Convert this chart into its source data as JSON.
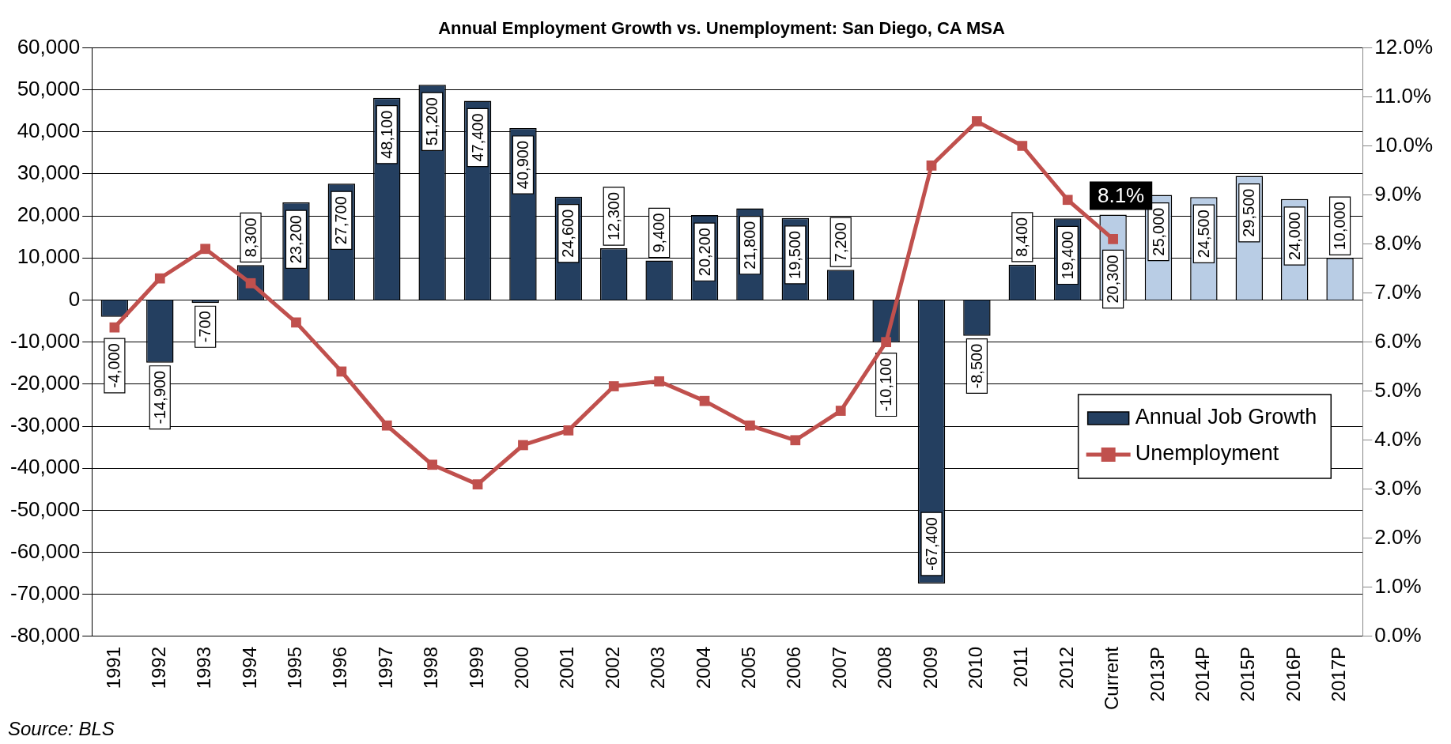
{
  "chart_data": {
    "type": "bar",
    "title": "Annual Employment Growth vs. Unemployment: San Diego, CA MSA",
    "categories": [
      "1991",
      "1992",
      "1993",
      "1994",
      "1995",
      "1996",
      "1997",
      "1998",
      "1999",
      "2000",
      "2001",
      "2002",
      "2003",
      "2004",
      "2005",
      "2006",
      "2007",
      "2008",
      "2009",
      "2010",
      "2011",
      "2012",
      "Current",
      "2013P",
      "2014P",
      "2015P",
      "2016P",
      "2017P"
    ],
    "series": [
      {
        "name": "Annual Job Growth",
        "color": "#243f60",
        "colors": [
          "#243f60",
          "#243f60",
          "#243f60",
          "#243f60",
          "#243f60",
          "#243f60",
          "#243f60",
          "#243f60",
          "#243f60",
          "#243f60",
          "#243f60",
          "#243f60",
          "#243f60",
          "#243f60",
          "#243f60",
          "#243f60",
          "#243f60",
          "#243f60",
          "#243f60",
          "#243f60",
          "#243f60",
          "#243f60",
          "#b9cde5",
          "#b9cde5",
          "#b9cde5",
          "#b9cde5",
          "#b9cde5",
          "#b9cde5"
        ],
        "values": [
          -4000,
          -14900,
          -700,
          8300,
          23200,
          27700,
          48100,
          51200,
          47400,
          40900,
          24600,
          12300,
          9400,
          20200,
          21800,
          19500,
          7200,
          -10100,
          -67400,
          -8500,
          8400,
          19400,
          20300,
          25000,
          24500,
          29500,
          24000,
          10000
        ],
        "value_labels": [
          "-4,000",
          "-14,900",
          "-700",
          "8,300",
          "23,200",
          "27,700",
          "48,100",
          "51,200",
          "47,400",
          "40,900",
          "24,600",
          "12,300",
          "9,400",
          "20,200",
          "21,800",
          "19,500",
          "7,200",
          "-10,100",
          "-67,400",
          "-8,500",
          "8,400",
          "19,400",
          "20,300",
          "25,000",
          "24,500",
          "29,500",
          "24,000",
          "10,000"
        ]
      },
      {
        "name": "Unemployment",
        "type": "line",
        "axis": "y2",
        "color": "#c0504d",
        "values": [
          6.3,
          7.3,
          7.9,
          7.2,
          6.4,
          5.4,
          4.3,
          3.5,
          3.1,
          3.9,
          4.2,
          5.1,
          5.2,
          4.8,
          4.3,
          4.0,
          4.6,
          6.0,
          9.6,
          10.5,
          10.0,
          8.9,
          8.1,
          null,
          null,
          null,
          null,
          null
        ]
      }
    ],
    "ylim": [
      -80000,
      60000
    ],
    "yticks": [
      {
        "value": -80000,
        "label": "-80,000"
      },
      {
        "value": -70000,
        "label": "-70,000"
      },
      {
        "value": -60000,
        "label": "-60,000"
      },
      {
        "value": -50000,
        "label": "-50,000"
      },
      {
        "value": -40000,
        "label": "-40,000"
      },
      {
        "value": -30000,
        "label": "-30,000"
      },
      {
        "value": -20000,
        "label": "-20,000"
      },
      {
        "value": -10000,
        "label": "-10,000"
      },
      0,
      {
        "value": 10000,
        "label": "10,000"
      },
      {
        "value": 20000,
        "label": "20,000"
      },
      {
        "value": 30000,
        "label": "30,000"
      },
      {
        "value": 40000,
        "label": "40,000"
      },
      {
        "value": 50000,
        "label": "50,000"
      },
      {
        "value": 60000,
        "label": "60,000"
      }
    ],
    "y2lim": [
      0,
      12
    ],
    "y2ticks": [
      {
        "value": 0,
        "label": "0.0%"
      },
      {
        "value": 1,
        "label": "1.0%"
      },
      {
        "value": 2,
        "label": "2.0%"
      },
      {
        "value": 3,
        "label": "3.0%"
      },
      {
        "value": 4,
        "label": "4.0%"
      },
      {
        "value": 5,
        "label": "5.0%"
      },
      {
        "value": 6,
        "label": "6.0%"
      },
      {
        "value": 7,
        "label": "7.0%"
      },
      {
        "value": 8,
        "label": "8.0%"
      },
      {
        "value": 9,
        "label": "9.0%"
      },
      {
        "value": 10,
        "label": "10.0%"
      },
      {
        "value": 11,
        "label": "11.0%"
      },
      {
        "value": 12,
        "label": "12.0%"
      }
    ],
    "grid": "y",
    "legend": "bottom right",
    "marker": "square",
    "line_style": "solid",
    "annotations": [
      "8.1%",
      "Source: BLS"
    ]
  }
}
